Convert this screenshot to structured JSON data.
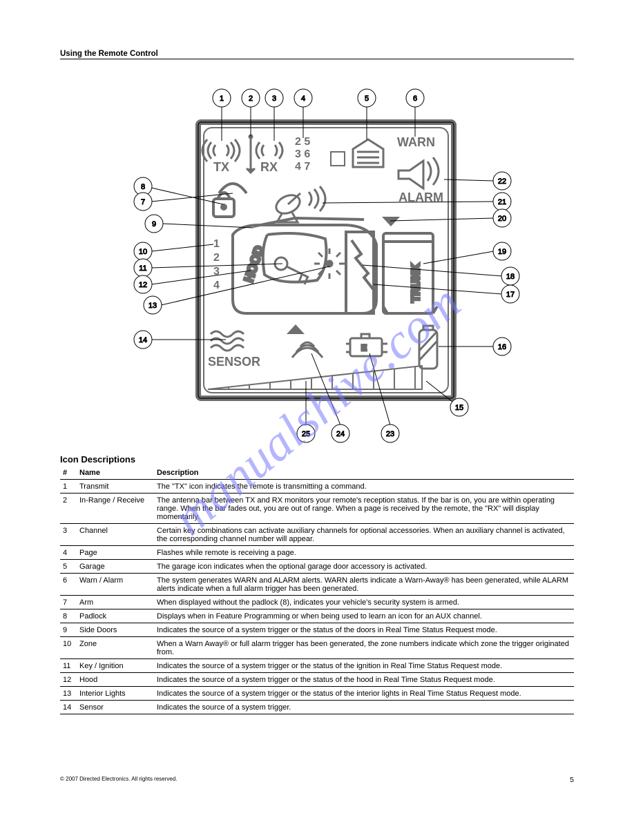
{
  "header": {
    "title": "Using the Remote Control"
  },
  "diagram": {
    "lcd": {
      "tx": "TX",
      "rx": "RX",
      "matrix": [
        "2 5",
        "3 6",
        "4 7"
      ],
      "warn": "WARN",
      "alarm": "ALARM",
      "hood": "HOOD",
      "trunk": "TRUNK",
      "sensor": "SENSOR",
      "zones": [
        "1",
        "2",
        "3",
        "4"
      ]
    },
    "callouts_top": [
      "1",
      "2",
      "3",
      "4",
      "5",
      "6"
    ],
    "callouts_left": [
      "8",
      "7",
      "9",
      "10",
      "11",
      "12",
      "13",
      "14"
    ],
    "callouts_right": [
      "22",
      "21",
      "20",
      "19",
      "18",
      "17",
      "16"
    ],
    "callouts_bottom": [
      "25",
      "24",
      "23",
      "15"
    ],
    "watermark": "manualshive.com"
  },
  "table": {
    "title": "Icon Descriptions",
    "columns": [
      "#",
      "Name",
      "Description"
    ],
    "rows": [
      [
        "1",
        "Transmit",
        "The \"TX\" icon indicates the remote is transmitting a command."
      ],
      [
        "2",
        "In-Range / Receive",
        "The antenna bar between TX and RX monitors your remote's reception status. If the bar is on, you are within operating range. When the bar fades out, you are out of range. When a page is received by the remote, the \"RX\" will display momentarily."
      ],
      [
        "3",
        "Channel",
        "Certain key combinations can activate auxiliary channels for optional accessories. When an auxiliary channel is activated, the corresponding channel number will appear."
      ],
      [
        "4",
        "Page",
        "Flashes while remote is receiving a page."
      ],
      [
        "5",
        "Garage",
        "The garage icon indicates when the optional garage door accessory is activated."
      ],
      [
        "6",
        "Warn / Alarm",
        "The system generates WARN and ALARM alerts.  WARN alerts indicate a Warn-Away® has been generated, while ALARM alerts indicate when a full alarm trigger has been generated."
      ],
      [
        "7",
        "Arm",
        "When displayed without the padlock (8), indicates your vehicle's security system is armed."
      ],
      [
        "8",
        "Padlock",
        "Displays when in Feature Programming or when being used to learn an icon for an AUX channel."
      ],
      [
        "9",
        "Side Doors",
        "Indicates the source of a system trigger or the status of the doors in Real Time Status Request mode."
      ],
      [
        "10",
        "Zone",
        "When a Warn Away® or full alarm trigger has been generated, the zone numbers indicate which zone the trigger originated from."
      ],
      [
        "11",
        "Key / Ignition",
        "Indicates the source of a system trigger or the status of the ignition in Real Time Status Request mode."
      ],
      [
        "12",
        "Hood",
        "Indicates the source of a system trigger or the status of the hood in Real Time Status Request mode."
      ],
      [
        "13",
        "Interior Lights",
        "Indicates the source of a system trigger or the status of the interior lights in Real Time Status Request mode."
      ],
      [
        "14",
        "Sensor",
        "Indicates the source of a system trigger."
      ]
    ]
  },
  "footer": {
    "copy": "© 2007 Directed Electronics. All rights reserved.",
    "page": "5"
  },
  "colors": {
    "line": "#000000",
    "lcd_line": "#6e6e6e",
    "bg": "#ffffff",
    "watermark": "#7a79ff"
  }
}
